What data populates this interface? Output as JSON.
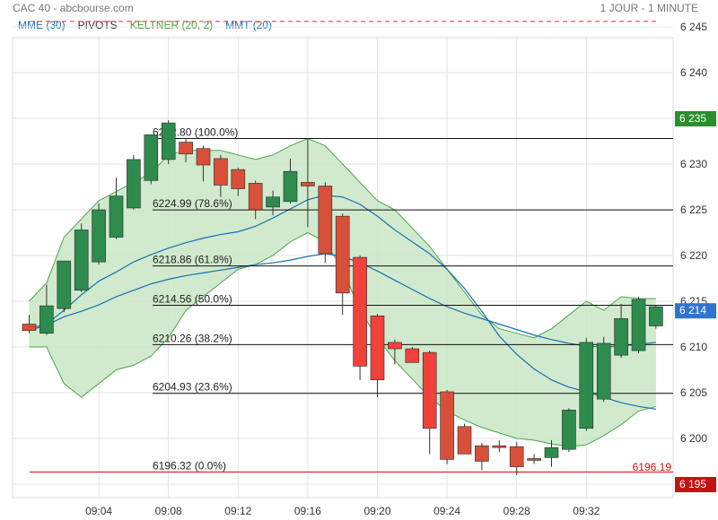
{
  "header": {
    "title": "CAC 40 - abcbourse.com",
    "period": "1 JOUR - 1 MINUTE"
  },
  "indicators": [
    {
      "label": "MME (30)",
      "color": "#1a6fb5"
    },
    {
      "label": "PIVOTS",
      "color": "#333333"
    },
    {
      "label": "KELTNER (20, 2)",
      "color": "#3e9b3e"
    },
    {
      "label": "MMT (20)",
      "color": "#1a6fb5"
    }
  ],
  "colors": {
    "up": "#2e8b4e",
    "down": "#d9503a",
    "down_bright": "#f0413a",
    "keltner_fill": "#c9e6c4",
    "keltner_line": "#4aa64a",
    "ma": "#1a6fb5",
    "pivot_dash": "#e03030",
    "grid": "#e3e3e3"
  },
  "chart_data": {
    "type": "candlestick",
    "y_axis": {
      "min": 6194,
      "max": 6247,
      "ticks": [
        6195,
        6200,
        6205,
        6210,
        6215,
        6220,
        6225,
        6230,
        6235,
        6240,
        6245
      ]
    },
    "x_axis": {
      "ticks": [
        "09:04",
        "09:08",
        "09:12",
        "09:16",
        "09:20",
        "09:24",
        "09:28",
        "09:32"
      ],
      "minutes_per_tick": 4
    },
    "price_markers": [
      {
        "value": "6 235",
        "level": 6235,
        "style": "green"
      },
      {
        "value": "6 214",
        "level": 6214,
        "style": "blue"
      },
      {
        "value": "6 195",
        "level": 6195,
        "style": "red"
      }
    ],
    "last_low_label": {
      "text": "6196.19",
      "level": 6196.19
    },
    "pivot_level": 6245.6,
    "fibonacci": [
      {
        "label": "6232.80  (100.0%)",
        "level": 6232.8
      },
      {
        "label": "6224.99  (78.6%)",
        "level": 6224.99
      },
      {
        "label": "6218.86  (61.8%)",
        "level": 6218.86
      },
      {
        "label": "6214.56  (50.0%)",
        "level": 6214.56
      },
      {
        "label": "6210.26  (38.2%)",
        "level": 6210.26
      },
      {
        "label": "6204.93  (23.6%)",
        "level": 6204.93
      },
      {
        "label": "6196.32  (0.0%)",
        "level": 6196.32
      }
    ],
    "candles": [
      {
        "t": "09:00",
        "o": 6212.5,
        "h": 6213.5,
        "l": 6211.5,
        "c": 6211.8
      },
      {
        "t": "09:01",
        "o": 6211.5,
        "h": 6216.8,
        "l": 6211.3,
        "c": 6214.5
      },
      {
        "t": "09:02",
        "o": 6214.2,
        "h": 6219.0,
        "l": 6213.8,
        "c": 6219.4
      },
      {
        "t": "09:03",
        "o": 6216.2,
        "h": 6223.5,
        "l": 6216.0,
        "c": 6222.8
      },
      {
        "t": "09:04",
        "o": 6219.3,
        "h": 6225.7,
        "l": 6219.0,
        "c": 6225.0
      },
      {
        "t": "09:05",
        "o": 6222.0,
        "h": 6228.5,
        "l": 6221.8,
        "c": 6226.5
      },
      {
        "t": "09:06",
        "o": 6225.2,
        "h": 6231.0,
        "l": 6225.0,
        "c": 6230.5
      },
      {
        "t": "09:07",
        "o": 6228.2,
        "h": 6233.2,
        "l": 6227.8,
        "c": 6233.2
      },
      {
        "t": "09:08",
        "o": 6230.5,
        "h": 6234.8,
        "l": 6230.0,
        "c": 6234.5
      },
      {
        "t": "09:09",
        "o": 6232.4,
        "h": 6232.8,
        "l": 6230.2,
        "c": 6231.1
      },
      {
        "t": "09:10",
        "o": 6231.7,
        "h": 6232.0,
        "l": 6228.1,
        "c": 6229.9
      },
      {
        "t": "09:11",
        "o": 6230.6,
        "h": 6231.0,
        "l": 6226.4,
        "c": 6227.7
      },
      {
        "t": "09:12",
        "o": 6229.4,
        "h": 6229.6,
        "l": 6226.5,
        "c": 6227.3
      },
      {
        "t": "09:13",
        "o": 6227.9,
        "h": 6228.2,
        "l": 6224.0,
        "c": 6225.0
      },
      {
        "t": "09:14",
        "o": 6225.3,
        "h": 6227.1,
        "l": 6224.4,
        "c": 6226.4
      },
      {
        "t": "09:15",
        "o": 6225.9,
        "h": 6230.6,
        "l": 6225.7,
        "c": 6229.2
      },
      {
        "t": "09:16",
        "o": 6228.0,
        "h": 6232.8,
        "l": 6223.1,
        "c": 6227.6
      },
      {
        "t": "09:17",
        "o": 6227.6,
        "h": 6228.0,
        "l": 6219.2,
        "c": 6220.2
      },
      {
        "t": "09:18",
        "o": 6224.3,
        "h": 6224.6,
        "l": 6213.5,
        "c": 6215.9
      },
      {
        "t": "09:19",
        "o": 6219.8,
        "h": 6220.0,
        "l": 6206.4,
        "c": 6207.9
      },
      {
        "t": "09:20",
        "o": 6213.4,
        "h": 6213.6,
        "l": 6204.5,
        "c": 6206.4
      },
      {
        "t": "09:21",
        "o": 6210.5,
        "h": 6210.8,
        "l": 6208.1,
        "c": 6209.8
      },
      {
        "t": "09:22",
        "o": 6209.8,
        "h": 6210.0,
        "l": 6208.4,
        "c": 6208.3
      },
      {
        "t": "09:23",
        "o": 6209.4,
        "h": 6209.6,
        "l": 6198.3,
        "c": 6201.1
      },
      {
        "t": "09:24",
        "o": 6205.1,
        "h": 6205.3,
        "l": 6197.2,
        "c": 6197.7
      },
      {
        "t": "09:25",
        "o": 6201.3,
        "h": 6201.6,
        "l": 6198.3,
        "c": 6198.3
      },
      {
        "t": "09:26",
        "o": 6199.2,
        "h": 6199.5,
        "l": 6196.5,
        "c": 6197.5
      },
      {
        "t": "09:27",
        "o": 6199.2,
        "h": 6199.8,
        "l": 6198.5,
        "c": 6199.1
      },
      {
        "t": "09:28",
        "o": 6199.1,
        "h": 6199.6,
        "l": 6196.0,
        "c": 6196.9
      },
      {
        "t": "09:29",
        "o": 6197.8,
        "h": 6198.3,
        "l": 6197.2,
        "c": 6197.6
      },
      {
        "t": "09:30",
        "o": 6197.9,
        "h": 6199.8,
        "l": 6196.9,
        "c": 6199.0
      },
      {
        "t": "09:31",
        "o": 6198.8,
        "h": 6203.3,
        "l": 6198.5,
        "c": 6203.1
      },
      {
        "t": "09:32",
        "o": 6201.1,
        "h": 6211.0,
        "l": 6200.8,
        "c": 6210.5
      },
      {
        "t": "09:33",
        "o": 6204.3,
        "h": 6211.1,
        "l": 6204.0,
        "c": 6210.4
      },
      {
        "t": "09:34",
        "o": 6209.1,
        "h": 6214.7,
        "l": 6208.8,
        "c": 6213.1
      },
      {
        "t": "09:35",
        "o": 6209.6,
        "h": 6215.5,
        "l": 6209.3,
        "c": 6215.2
      },
      {
        "t": "09:36",
        "o": 6212.3,
        "h": 6214.6,
        "l": 6212.0,
        "c": 6214.4
      }
    ],
    "keltner_upper": [
      6215,
      6217,
      6222,
      6224,
      6226,
      6227,
      6228,
      6229,
      6231,
      6231.5,
      6231.5,
      6231.5,
      6231,
      6230.5,
      6231,
      6232,
      6232.8,
      6232,
      6230,
      6228,
      6226,
      6225,
      6223,
      6221,
      6218.5,
      6216,
      6213.5,
      6212,
      6211.5,
      6211,
      6212,
      6213.5,
      6215,
      6214,
      6215.5,
      6215.3,
      6215.3
    ],
    "keltner_lower": [
      6210,
      6210,
      6206,
      6204.5,
      6206,
      6207.5,
      6208,
      6209,
      6211,
      6214,
      6215.5,
      6217,
      6218.5,
      6219,
      6220,
      6221.5,
      6222.5,
      6221.5,
      6218.5,
      6214,
      6211,
      6208.5,
      6206.5,
      6204.5,
      6203,
      6202,
      6201.2,
      6200.6,
      6200,
      6199.8,
      6199.4,
      6199.1,
      6199.3,
      6200.3,
      6201.5,
      6203,
      6203.5
    ],
    "ma_short": [
      6212,
      6212.5,
      6214,
      6215.7,
      6217.2,
      6218.2,
      6219.3,
      6220.1,
      6220.8,
      6221.4,
      6221.9,
      6222.3,
      6222.6,
      6223.2,
      6224.1,
      6225.1,
      6226.1,
      6226.6,
      6226.4,
      6225.6,
      6224.3,
      6222.8,
      6221.5,
      6220.2,
      6218.5,
      6216.4,
      6213.9,
      6211.2,
      6209.2,
      6207.6,
      6206.4,
      6205.6,
      6205.1,
      6204.5,
      6203.9,
      6203.5,
      6203.2
    ],
    "ma_long": [
      6211.8,
      6212.4,
      6213.3,
      6213.9,
      6214.6,
      6215.5,
      6216.2,
      6216.9,
      6217.4,
      6217.8,
      6218.1,
      6218.4,
      6218.7,
      6219.0,
      6219.2,
      6219.5,
      6219.9,
      6220.2,
      6219.9,
      6219.2,
      6218.3,
      6217.3,
      6216.3,
      6215.3,
      6214.4,
      6213.7,
      6213.1,
      6212.5,
      6211.9,
      6211.3,
      6210.8,
      6210.4,
      6210.1,
      6210.0,
      6210.1,
      6210.3,
      6210.5
    ]
  }
}
